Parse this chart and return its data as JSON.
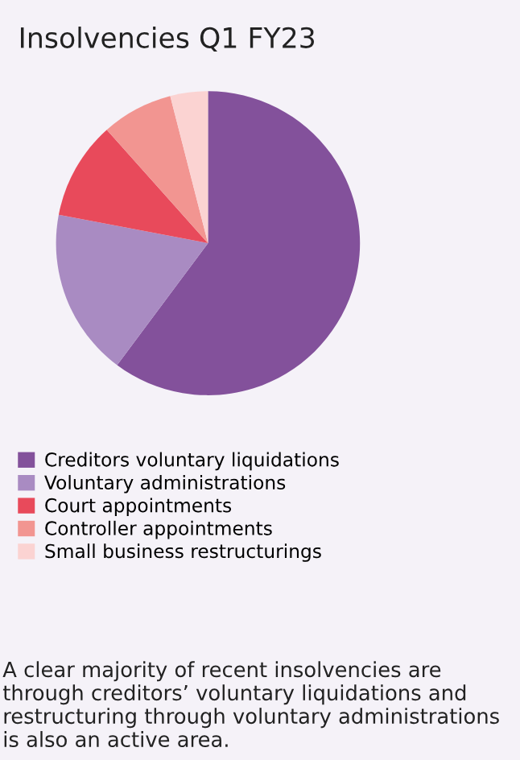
{
  "chart_data": {
    "type": "pie",
    "title": "Insolvencies Q1 FY23",
    "categories": [
      "Creditors voluntary liquidations",
      "Voluntary administrations",
      "Court appointments",
      "Controller appointments",
      "Small business restructurings"
    ],
    "values": [
      60.2,
      17.8,
      10.4,
      7.6,
      4.0
    ],
    "colors": [
      "#83519b",
      "#a98bc2",
      "#e84a5b",
      "#f29591",
      "#fbd3d2"
    ],
    "legend": "bottom",
    "annotations": [
      "A clear majority of recent insolvencies are through creditors’ voluntary liquidations and restructuring through voluntary administrations is also an active area."
    ]
  }
}
